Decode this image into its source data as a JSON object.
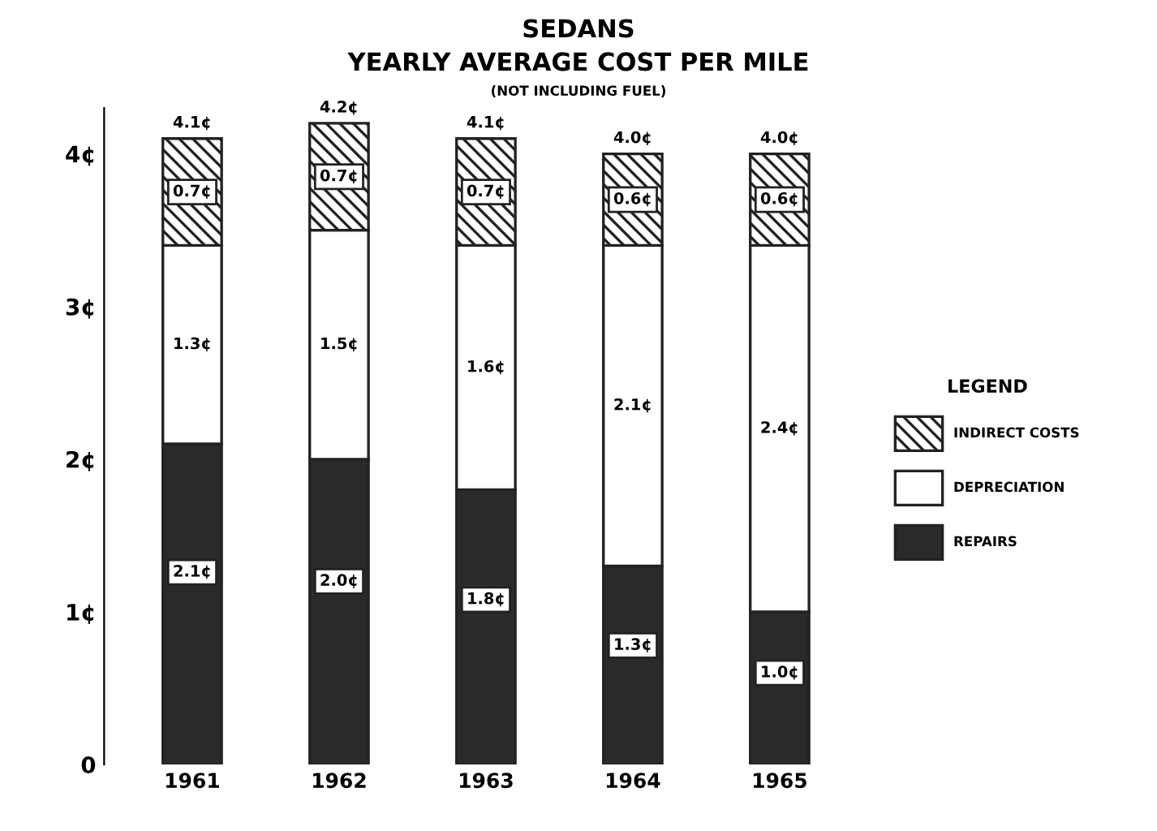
{
  "chart_data": {
    "type": "bar",
    "title": "SEDANS",
    "subtitle": "YEARLY AVERAGE COST PER MILE",
    "annotations": [
      "(NOT INCLUDING FUEL)"
    ],
    "categories": [
      "1961",
      "1962",
      "1963",
      "1964",
      "1965"
    ],
    "stacked": true,
    "legend": "right",
    "legend_title": "LEGEND",
    "grid": false,
    "ylim": [
      0,
      4.3
    ],
    "yticks": [
      {
        "value": 0,
        "label": "0"
      },
      {
        "value": 1,
        "label": "1¢"
      },
      {
        "value": 2,
        "label": "2¢"
      },
      {
        "value": 3,
        "label": "3¢"
      },
      {
        "value": 4,
        "label": "4¢"
      }
    ],
    "series": [
      {
        "name": "REPAIRS",
        "color": "#2a2a2a",
        "values": [
          2.1,
          2.0,
          1.8,
          1.3,
          1.0
        ],
        "value_labels": [
          "2.1¢",
          "2.0¢",
          "1.8¢",
          "1.3¢",
          "1.0¢"
        ]
      },
      {
        "name": "DEPRECIATION",
        "color": "#ffffff",
        "values": [
          1.3,
          1.5,
          1.6,
          2.1,
          2.4
        ],
        "value_labels": [
          "1.3¢",
          "1.5¢",
          "1.6¢",
          "2.1¢",
          "2.4¢"
        ]
      },
      {
        "name": "INDIRECT COSTS",
        "color": "#222222",
        "values": [
          0.7,
          0.7,
          0.7,
          0.6,
          0.6
        ],
        "value_labels": [
          "0.7¢",
          "0.7¢",
          "0.7¢",
          "0.6¢",
          "0.6¢"
        ]
      }
    ],
    "totals": [
      "4.1¢",
      "4.2¢",
      "4.1¢",
      "4.0¢",
      "4.0¢"
    ]
  }
}
